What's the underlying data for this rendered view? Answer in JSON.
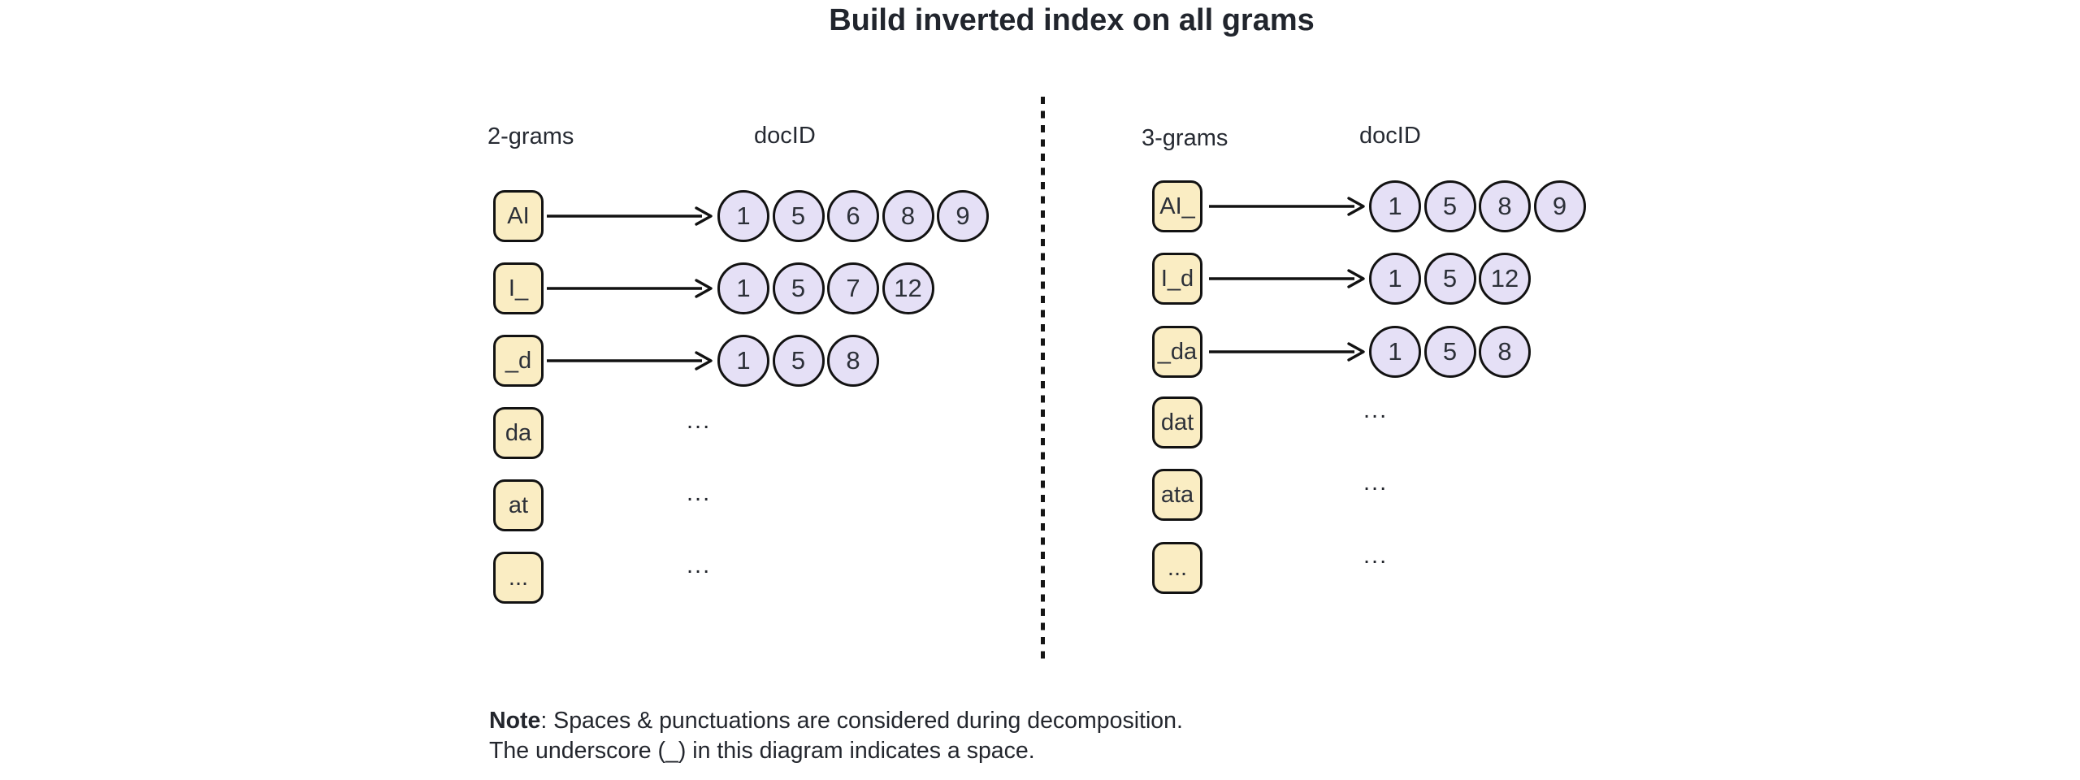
{
  "title": "Build inverted index on all grams",
  "colors": {
    "gram_box_fill": "#faedc3",
    "docid_circle_fill": "#e5e0f6",
    "outline": "#121212",
    "text": "#262a32"
  },
  "sections": [
    {
      "id": "2-grams",
      "gram_label": "2-grams",
      "docid_label": "docID",
      "rows": [
        {
          "gram": "AI",
          "docids": [
            1,
            5,
            6,
            8,
            9
          ]
        },
        {
          "gram": "I_",
          "docids": [
            1,
            5,
            7,
            12
          ]
        },
        {
          "gram": "_d",
          "docids": [
            1,
            5,
            8
          ]
        },
        {
          "gram": "da",
          "docids": "..."
        },
        {
          "gram": "at",
          "docids": "..."
        },
        {
          "gram": "...",
          "docids": "..."
        }
      ]
    },
    {
      "id": "3-grams",
      "gram_label": "3-grams",
      "docid_label": "docID",
      "rows": [
        {
          "gram": "AI_",
          "docids": [
            1,
            5,
            8,
            9
          ]
        },
        {
          "gram": "I_d",
          "docids": [
            1,
            5,
            12
          ]
        },
        {
          "gram": "_da",
          "docids": [
            1,
            5,
            8
          ]
        },
        {
          "gram": "dat",
          "docids": "..."
        },
        {
          "gram": "ata",
          "docids": "..."
        },
        {
          "gram": "...",
          "docids": "..."
        }
      ]
    }
  ],
  "note": {
    "bold": "Note",
    "line1_rest": ": Spaces & punctuations are considered during decomposition.",
    "line2": "The underscore (_) in this diagram indicates a space."
  }
}
